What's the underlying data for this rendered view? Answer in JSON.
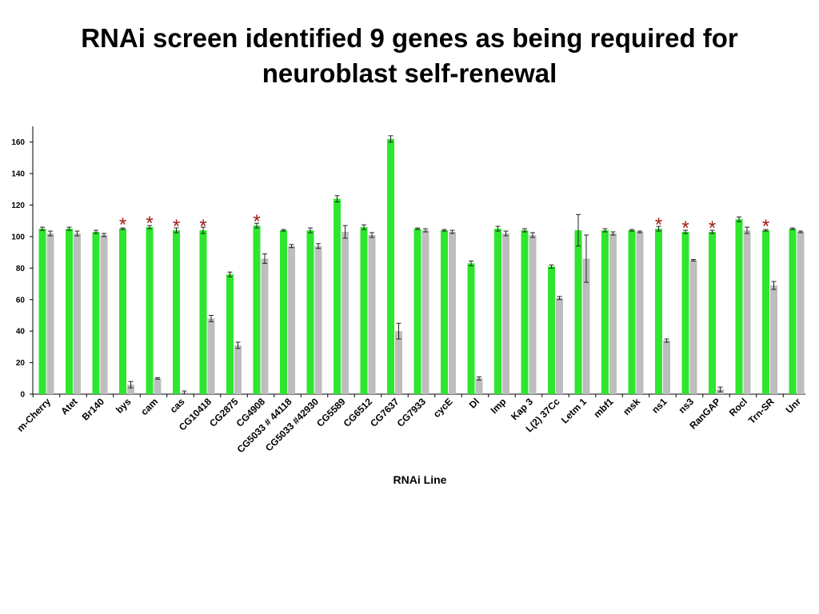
{
  "title_line1": "RNAi screen identified 9 genes as being required for",
  "title_line2": "neuroblast self-renewal",
  "colors": {
    "green": "#2ee62e",
    "gray": "#bdbdbd",
    "star": "#a11a10",
    "axis": "#000000"
  },
  "chart_data": {
    "type": "bar",
    "title": "",
    "xlabel": "RNAi Line",
    "ylabel": "",
    "ylim": [
      0,
      170
    ],
    "yticks": [
      0,
      20,
      40,
      60,
      80,
      100,
      120,
      140,
      160
    ],
    "grid": false,
    "legend": "none",
    "marker": "*",
    "categories": [
      "m-Cherry",
      "Atet",
      "Br140",
      "bys",
      "cam",
      "cas",
      "CG10418",
      "CG2875",
      "CG4908",
      "CG5033 # 44118",
      "CG5033 #42930",
      "CG5589",
      "CG6512",
      "CG7637",
      "CG7933",
      "cycE",
      "Dl",
      "Imp",
      "Kap 3",
      "L(2) 37Cc",
      "Letm 1",
      "mbf1",
      "msk",
      "ns1",
      "ns3",
      "RanGAP",
      "Rocl",
      "Trn-SR",
      "Unr"
    ],
    "series": [
      {
        "values": [
          105,
          105,
          103,
          105,
          106,
          104,
          104,
          76,
          107,
          104,
          104,
          124,
          106,
          162,
          105,
          104,
          83,
          105,
          104,
          81,
          104,
          104,
          104,
          105,
          103,
          103,
          111,
          104,
          105
        ],
        "errors": [
          1,
          1,
          1,
          0.5,
          1,
          1.5,
          2,
          1.5,
          1.5,
          0.5,
          1.5,
          2,
          1.5,
          2,
          0.5,
          0.5,
          1.5,
          1.5,
          1,
          1,
          10,
          1,
          0.5,
          1.5,
          1,
          1,
          1.5,
          0.5,
          0.5
        ]
      },
      {
        "values": [
          102,
          102,
          101,
          6,
          10,
          1,
          48,
          31,
          86,
          94,
          94,
          103,
          101,
          40,
          104,
          103,
          10,
          102,
          101,
          61,
          86,
          102,
          103,
          34,
          85,
          3,
          104,
          69,
          103
        ],
        "errors": [
          1.5,
          1.5,
          1,
          2,
          0.5,
          1,
          2,
          2,
          3,
          1,
          1.5,
          4,
          1.5,
          5,
          1,
          1,
          1,
          1.5,
          1.5,
          1,
          15,
          1,
          0.5,
          1,
          0.5,
          1.5,
          2,
          2.5,
          0.5
        ]
      }
    ],
    "starred": [
      "bys",
      "cam",
      "cas",
      "CG10418",
      "CG4908",
      "ns1",
      "ns3",
      "RanGAP",
      "Trn-SR"
    ]
  }
}
